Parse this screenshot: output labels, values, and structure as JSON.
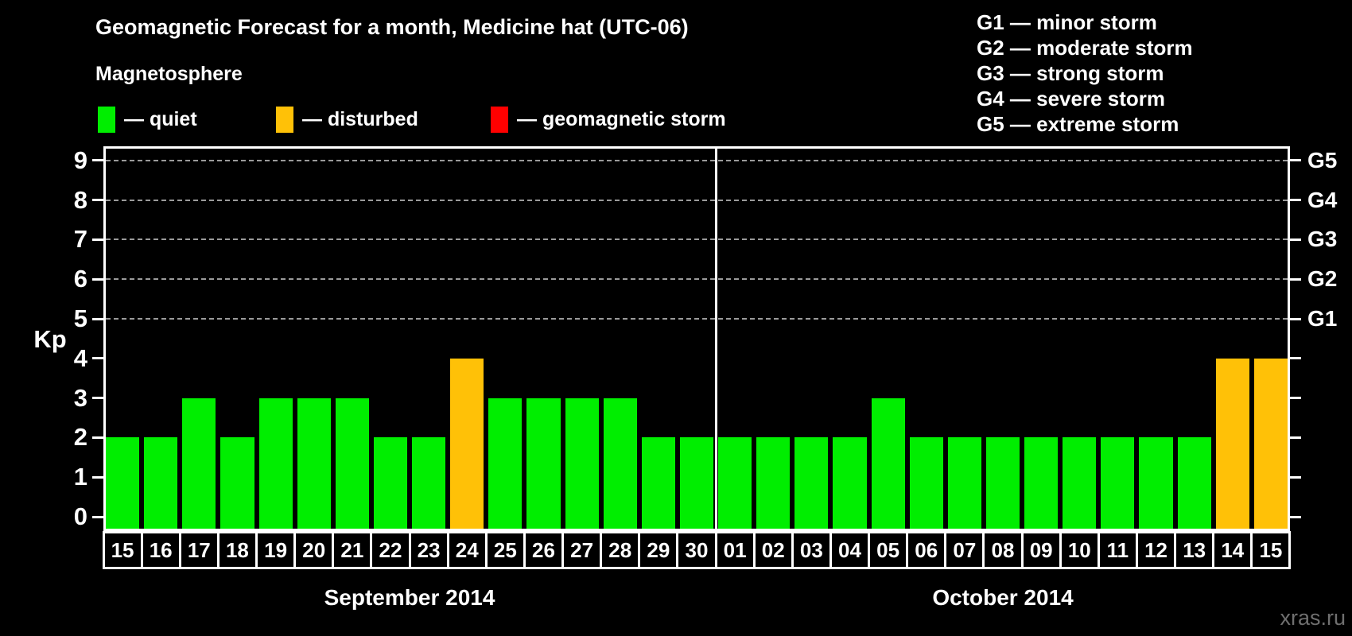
{
  "title": "Geomagnetic Forecast for a month, Medicine hat (UTC-06)",
  "subtitle": "Magnetosphere",
  "watermark": "xras.ru",
  "legend": {
    "items": [
      {
        "name": "quiet",
        "color": "#00ee00",
        "label": "— quiet"
      },
      {
        "name": "disturbed",
        "color": "#ffc107",
        "label": "— disturbed"
      },
      {
        "name": "storm",
        "color": "#ff0000",
        "label": "— geomagnetic storm"
      }
    ]
  },
  "storm_legend": {
    "items": [
      "G1 — minor storm",
      "G2 — moderate storm",
      "G3 — strong storm",
      "G4 — severe storm",
      "G5 — extreme storm"
    ]
  },
  "chart_data": {
    "type": "bar",
    "title": "Geomagnetic Forecast for a month, Medicine hat (UTC-06)",
    "ylabel": "Kp",
    "ylim": [
      0,
      9
    ],
    "yticks": [
      0,
      1,
      2,
      3,
      4,
      5,
      6,
      7,
      8,
      9
    ],
    "gridlines": [
      5,
      6,
      7,
      8,
      9
    ],
    "grid_style": "dashed",
    "legend_position": "top-left",
    "right_axis": [
      {
        "value": 5,
        "label": "G1"
      },
      {
        "value": 6,
        "label": "G2"
      },
      {
        "value": 7,
        "label": "G3"
      },
      {
        "value": 8,
        "label": "G4"
      },
      {
        "value": 9,
        "label": "G5"
      }
    ],
    "status_colors": {
      "quiet": "#00ee00",
      "disturbed": "#ffc107",
      "storm": "#ff0000"
    },
    "months": [
      {
        "label": "September 2014",
        "days": [
          {
            "date": "15",
            "kp": 2,
            "status": "quiet"
          },
          {
            "date": "16",
            "kp": 2,
            "status": "quiet"
          },
          {
            "date": "17",
            "kp": 3,
            "status": "quiet"
          },
          {
            "date": "18",
            "kp": 2,
            "status": "quiet"
          },
          {
            "date": "19",
            "kp": 3,
            "status": "quiet"
          },
          {
            "date": "20",
            "kp": 3,
            "status": "quiet"
          },
          {
            "date": "21",
            "kp": 3,
            "status": "quiet"
          },
          {
            "date": "22",
            "kp": 2,
            "status": "quiet"
          },
          {
            "date": "23",
            "kp": 2,
            "status": "quiet"
          },
          {
            "date": "24",
            "kp": 4,
            "status": "disturbed"
          },
          {
            "date": "25",
            "kp": 3,
            "status": "quiet"
          },
          {
            "date": "26",
            "kp": 3,
            "status": "quiet"
          },
          {
            "date": "27",
            "kp": 3,
            "status": "quiet"
          },
          {
            "date": "28",
            "kp": 3,
            "status": "quiet"
          },
          {
            "date": "29",
            "kp": 2,
            "status": "quiet"
          },
          {
            "date": "30",
            "kp": 2,
            "status": "quiet"
          }
        ]
      },
      {
        "label": "October 2014",
        "days": [
          {
            "date": "01",
            "kp": 2,
            "status": "quiet"
          },
          {
            "date": "02",
            "kp": 2,
            "status": "quiet"
          },
          {
            "date": "03",
            "kp": 2,
            "status": "quiet"
          },
          {
            "date": "04",
            "kp": 2,
            "status": "quiet"
          },
          {
            "date": "05",
            "kp": 3,
            "status": "quiet"
          },
          {
            "date": "06",
            "kp": 2,
            "status": "quiet"
          },
          {
            "date": "07",
            "kp": 2,
            "status": "quiet"
          },
          {
            "date": "08",
            "kp": 2,
            "status": "quiet"
          },
          {
            "date": "09",
            "kp": 2,
            "status": "quiet"
          },
          {
            "date": "10",
            "kp": 2,
            "status": "quiet"
          },
          {
            "date": "11",
            "kp": 2,
            "status": "quiet"
          },
          {
            "date": "12",
            "kp": 2,
            "status": "quiet"
          },
          {
            "date": "13",
            "kp": 2,
            "status": "quiet"
          },
          {
            "date": "14",
            "kp": 4,
            "status": "disturbed"
          },
          {
            "date": "15",
            "kp": 4,
            "status": "disturbed"
          }
        ]
      }
    ]
  }
}
